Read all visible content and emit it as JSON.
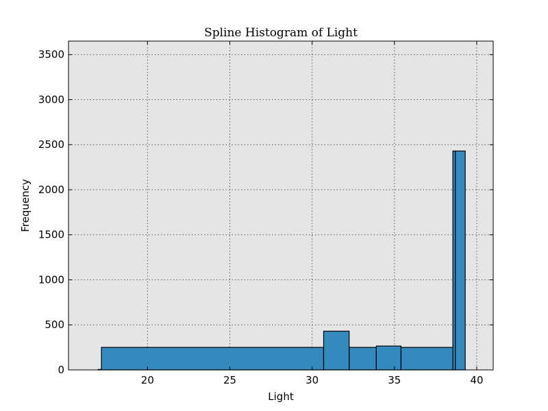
{
  "chart_data": {
    "type": "bar",
    "title": "Spline Histogram of Light",
    "xlabel": "Light",
    "ylabel": "Frequency",
    "xlim": [
      15.2,
      41.0
    ],
    "ylim": [
      0,
      3650
    ],
    "xticks": [
      20,
      25,
      30,
      35,
      40
    ],
    "yticks": [
      0,
      500,
      1000,
      1500,
      2000,
      2500,
      3000,
      3500
    ],
    "grid": true,
    "bar_color": "#348abd",
    "background_color": "#e5e5e5",
    "bins": [
      {
        "x0": 17.0,
        "x1": 17.2,
        "value": 5
      },
      {
        "x0": 17.2,
        "x1": 30.7,
        "value": 250
      },
      {
        "x0": 30.7,
        "x1": 32.25,
        "value": 430
      },
      {
        "x0": 32.25,
        "x1": 33.9,
        "value": 250
      },
      {
        "x0": 33.9,
        "x1": 35.4,
        "value": 265
      },
      {
        "x0": 35.4,
        "x1": 38.55,
        "value": 250
      },
      {
        "x0": 38.55,
        "x1": 38.7,
        "value": 2430
      },
      {
        "x0": 38.7,
        "x1": 39.3,
        "value": 2430
      }
    ]
  }
}
